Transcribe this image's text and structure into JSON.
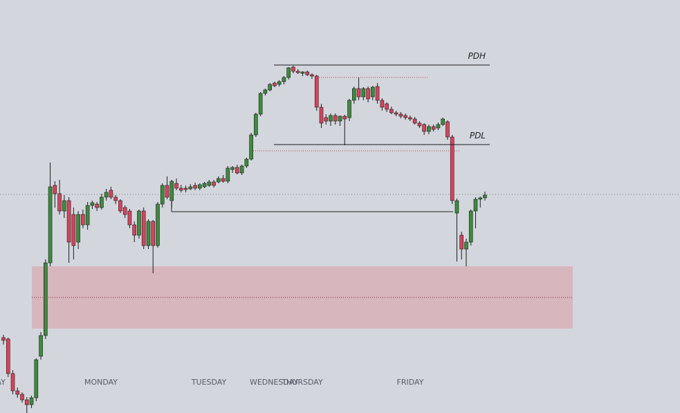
{
  "chart_data": {
    "type": "candlestick",
    "ylim": [
      3,
      600
    ],
    "up_color": "#3d8b3d",
    "down_color": "#d8435c",
    "ohlc": [
      [
        112,
        116,
        102,
        108
      ],
      [
        110,
        112,
        55,
        60
      ],
      [
        60,
        65,
        30,
        35
      ],
      [
        35,
        40,
        25,
        30
      ],
      [
        30,
        33,
        18,
        22
      ],
      [
        22,
        26,
        2,
        15
      ],
      [
        15,
        28,
        10,
        25
      ],
      [
        25,
        82,
        20,
        80
      ],
      [
        85,
        120,
        80,
        115
      ],
      [
        115,
        225,
        110,
        220
      ],
      [
        220,
        365,
        215,
        330
      ],
      [
        332,
        338,
        300,
        320
      ],
      [
        320,
        340,
        290,
        295
      ],
      [
        295,
        318,
        285,
        310
      ],
      [
        310,
        315,
        220,
        250
      ],
      [
        290,
        300,
        225,
        245
      ],
      [
        250,
        295,
        240,
        290
      ],
      [
        290,
        297,
        270,
        275
      ],
      [
        275,
        308,
        268,
        303
      ],
      [
        303,
        310,
        298,
        307
      ],
      [
        305,
        308,
        295,
        300
      ],
      [
        300,
        320,
        297,
        315
      ],
      [
        315,
        327,
        310,
        322
      ],
      [
        325,
        330,
        312,
        315
      ],
      [
        315,
        318,
        305,
        310
      ],
      [
        310,
        312,
        292,
        295
      ],
      [
        300,
        303,
        285,
        290
      ],
      [
        295,
        298,
        270,
        275
      ],
      [
        275,
        280,
        250,
        260
      ],
      [
        260,
        297,
        255,
        295
      ],
      [
        295,
        300,
        240,
        245
      ],
      [
        245,
        283,
        240,
        280
      ],
      [
        280,
        282,
        205,
        245
      ],
      [
        245,
        308,
        242,
        305
      ],
      [
        305,
        335,
        300,
        332
      ],
      [
        332,
        345,
        312,
        315
      ],
      [
        310,
        340,
        300,
        338
      ],
      [
        335,
        342,
        325,
        328
      ],
      [
        328,
        333,
        322,
        325
      ],
      [
        328,
        332,
        322,
        326
      ],
      [
        327,
        334,
        325,
        330
      ],
      [
        332,
        336,
        325,
        328
      ],
      [
        328,
        335,
        325,
        333
      ],
      [
        330,
        337,
        328,
        335
      ],
      [
        332,
        340,
        330,
        337
      ],
      [
        337,
        340,
        329,
        332
      ],
      [
        337,
        345,
        335,
        342
      ],
      [
        342,
        347,
        336,
        338
      ],
      [
        338,
        360,
        335,
        357
      ],
      [
        355,
        360,
        350,
        358
      ],
      [
        358,
        362,
        348,
        350
      ],
      [
        350,
        362,
        347,
        360
      ],
      [
        360,
        372,
        357,
        370
      ],
      [
        370,
        408,
        368,
        405
      ],
      [
        405,
        437,
        402,
        435
      ],
      [
        435,
        467,
        432,
        465
      ],
      [
        465,
        472,
        462,
        470
      ],
      [
        470,
        480,
        468,
        478
      ],
      [
        480,
        482,
        474,
        476
      ],
      [
        478,
        484,
        475,
        482
      ],
      [
        482,
        490,
        478,
        488
      ],
      [
        488,
        503,
        485,
        502
      ],
      [
        503,
        505,
        494,
        497
      ],
      [
        497,
        500,
        493,
        495
      ],
      [
        494,
        497,
        490,
        496
      ],
      [
        496,
        498,
        490,
        492
      ],
      [
        492,
        494,
        486,
        490
      ],
      [
        490,
        492,
        440,
        445
      ],
      [
        445,
        450,
        415,
        422
      ],
      [
        430,
        435,
        420,
        425
      ],
      [
        425,
        436,
        418,
        433
      ],
      [
        433,
        436,
        420,
        425
      ],
      [
        425,
        433,
        418,
        432
      ],
      [
        432,
        434,
        390,
        428
      ],
      [
        430,
        457,
        425,
        455
      ],
      [
        455,
        475,
        450,
        472
      ],
      [
        472,
        488,
        455,
        460
      ],
      [
        460,
        474,
        455,
        472
      ],
      [
        472,
        475,
        452,
        457
      ],
      [
        460,
        476,
        455,
        474
      ],
      [
        475,
        480,
        450,
        455
      ],
      [
        455,
        458,
        440,
        445
      ],
      [
        450,
        452,
        438,
        442
      ],
      [
        442,
        446,
        435,
        437
      ],
      [
        437,
        440,
        432,
        435
      ],
      [
        435,
        438,
        429,
        432
      ],
      [
        433,
        436,
        427,
        430
      ],
      [
        430,
        433,
        425,
        428
      ],
      [
        428,
        431,
        420,
        422
      ],
      [
        422,
        425,
        415,
        418
      ],
      [
        420,
        422,
        405,
        410
      ],
      [
        410,
        420,
        406,
        417
      ],
      [
        417,
        420,
        410,
        413
      ],
      [
        415,
        423,
        412,
        420
      ],
      [
        420,
        430,
        418,
        428
      ],
      [
        424,
        426,
        398,
        402
      ],
      [
        402,
        405,
        305,
        310
      ],
      [
        292,
        313,
        222,
        310
      ],
      [
        260,
        265,
        225,
        240
      ],
      [
        240,
        255,
        215,
        250
      ],
      [
        250,
        297,
        245,
        295
      ],
      [
        295,
        315,
        270,
        312
      ],
      [
        312,
        316,
        300,
        314
      ],
      [
        314,
        323,
        310,
        318
      ]
    ],
    "levels": [
      {
        "label": "PDH",
        "value": 506
      },
      {
        "label": "PDL",
        "value": 391
      }
    ],
    "day_labels": [
      "AY",
      "MONDAY",
      "TUESDAY",
      "WEDNESDAY",
      "THURSDAY",
      "FRIDAY"
    ]
  }
}
